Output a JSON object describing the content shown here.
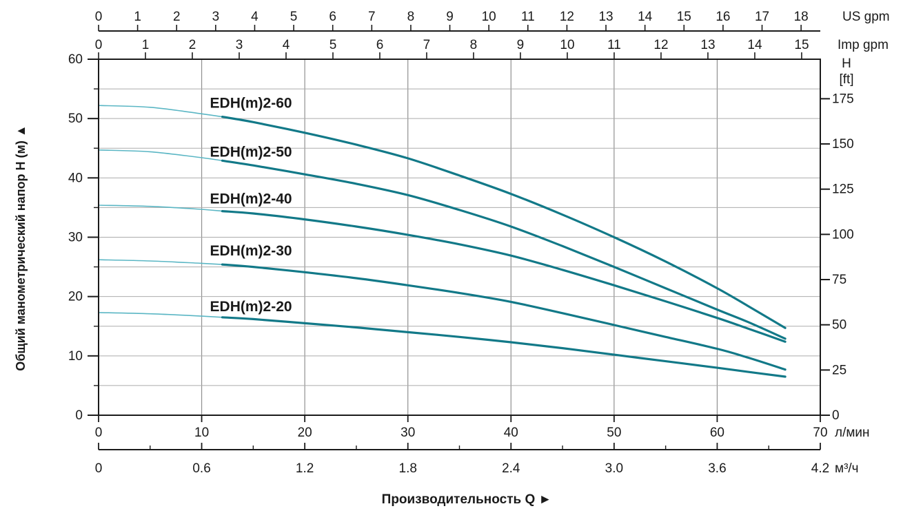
{
  "chart_data": {
    "type": "line",
    "title": "",
    "xlabel": "Производительность Q",
    "x_arrow": "►",
    "ylabel_left": "Общий манометрический напор H (м)",
    "y_arrow": "▲",
    "x_range_lmin": [
      0,
      70
    ],
    "y_range_m": [
      0,
      60
    ],
    "grid": {
      "x_step_lmin": 10,
      "y_step_m": 5,
      "grid_on": true
    },
    "axes": {
      "top_outer": {
        "unit": "US gpm",
        "lmin_per_unit": 3.78541,
        "ticks": [
          "0",
          "1",
          "2",
          "3",
          "4",
          "5",
          "6",
          "7",
          "8",
          "9",
          "10",
          "11",
          "12",
          "13",
          "14",
          "15",
          "16",
          "17",
          "18"
        ]
      },
      "top_inner": {
        "unit": "Imp gpm",
        "lmin_per_unit": 4.54609,
        "ticks": [
          "0",
          "1",
          "2",
          "3",
          "4",
          "5",
          "6",
          "7",
          "8",
          "9",
          "10",
          "11",
          "12",
          "13",
          "14",
          "15"
        ]
      },
      "bottom_inner": {
        "unit": "л/мин",
        "lmin_per_unit": 1,
        "ticks": [
          "0",
          "10",
          "20",
          "30",
          "40",
          "50",
          "60",
          "70"
        ]
      },
      "bottom_outer": {
        "unit": "м³/ч",
        "lmin_per_unit": 16.6667,
        "minor_step": 0.3,
        "ticks": [
          "0",
          "0.6",
          "1.2",
          "1.8",
          "2.4",
          "3.0",
          "3.6",
          "4.2"
        ]
      },
      "left": {
        "unit": "м",
        "ticks": [
          "0",
          "10",
          "20",
          "30",
          "40",
          "50",
          "60"
        ],
        "minor_step": 5
      },
      "right": {
        "unit_line1": "H",
        "unit_line2": "[ft]",
        "m_per_unit": 0.3048,
        "ticks": [
          "0",
          "25",
          "50",
          "75",
          "100",
          "125",
          "150",
          "175"
        ]
      }
    },
    "colors": {
      "curve_main": "#127988",
      "curve_low_flow": "#5ab6c4",
      "grid_h": "#ababab",
      "grid_v": "#8f8f8f",
      "axis": "#1a1a1a"
    },
    "low_flow_split_lmin": 12,
    "series": [
      {
        "name": "EDH(m)2-60",
        "label_q": 10.8,
        "label_h": 51.8,
        "points": [
          [
            0,
            52.2
          ],
          [
            5,
            51.9
          ],
          [
            10,
            50.8
          ],
          [
            12,
            50.3
          ],
          [
            15,
            49.4
          ],
          [
            20,
            47.6
          ],
          [
            25,
            45.6
          ],
          [
            30,
            43.3
          ],
          [
            35,
            40.4
          ],
          [
            40,
            37.3
          ],
          [
            45,
            33.8
          ],
          [
            50,
            30.0
          ],
          [
            55,
            25.9
          ],
          [
            60,
            21.4
          ],
          [
            63,
            18.4
          ],
          [
            66.6,
            14.7
          ]
        ]
      },
      {
        "name": "EDH(m)2-50",
        "label_q": 10.8,
        "label_h": 43.6,
        "points": [
          [
            0,
            44.7
          ],
          [
            5,
            44.4
          ],
          [
            10,
            43.4
          ],
          [
            12,
            42.9
          ],
          [
            15,
            42.1
          ],
          [
            20,
            40.6
          ],
          [
            25,
            39.0
          ],
          [
            30,
            37.1
          ],
          [
            35,
            34.6
          ],
          [
            40,
            31.8
          ],
          [
            45,
            28.5
          ],
          [
            50,
            25.0
          ],
          [
            55,
            21.4
          ],
          [
            60,
            17.8
          ],
          [
            63,
            15.7
          ],
          [
            66.6,
            12.9
          ]
        ]
      },
      {
        "name": "EDH(m)2-40",
        "label_q": 10.8,
        "label_h": 35.7,
        "points": [
          [
            0,
            35.4
          ],
          [
            5,
            35.2
          ],
          [
            10,
            34.7
          ],
          [
            12,
            34.4
          ],
          [
            15,
            34.0
          ],
          [
            20,
            33.0
          ],
          [
            25,
            31.8
          ],
          [
            30,
            30.4
          ],
          [
            35,
            28.8
          ],
          [
            40,
            26.9
          ],
          [
            45,
            24.5
          ],
          [
            50,
            21.9
          ],
          [
            55,
            19.2
          ],
          [
            60,
            16.4
          ],
          [
            63,
            14.6
          ],
          [
            66.6,
            12.4
          ]
        ]
      },
      {
        "name": "EDH(m)2-30",
        "label_q": 10.8,
        "label_h": 26.9,
        "points": [
          [
            0,
            26.2
          ],
          [
            5,
            26.0
          ],
          [
            10,
            25.6
          ],
          [
            12,
            25.4
          ],
          [
            15,
            25.0
          ],
          [
            20,
            24.1
          ],
          [
            25,
            23.1
          ],
          [
            30,
            21.9
          ],
          [
            35,
            20.6
          ],
          [
            40,
            19.1
          ],
          [
            45,
            17.2
          ],
          [
            50,
            15.2
          ],
          [
            55,
            13.2
          ],
          [
            60,
            11.2
          ],
          [
            63,
            9.7
          ],
          [
            66.6,
            7.7
          ]
        ]
      },
      {
        "name": "EDH(m)2-20",
        "label_q": 10.8,
        "label_h": 17.5,
        "points": [
          [
            0,
            17.3
          ],
          [
            5,
            17.1
          ],
          [
            10,
            16.7
          ],
          [
            12,
            16.5
          ],
          [
            15,
            16.2
          ],
          [
            20,
            15.5
          ],
          [
            25,
            14.8
          ],
          [
            30,
            14.0
          ],
          [
            35,
            13.2
          ],
          [
            40,
            12.3
          ],
          [
            45,
            11.3
          ],
          [
            50,
            10.2
          ],
          [
            55,
            9.1
          ],
          [
            60,
            8.0
          ],
          [
            63,
            7.3
          ],
          [
            66.6,
            6.5
          ]
        ]
      }
    ]
  }
}
